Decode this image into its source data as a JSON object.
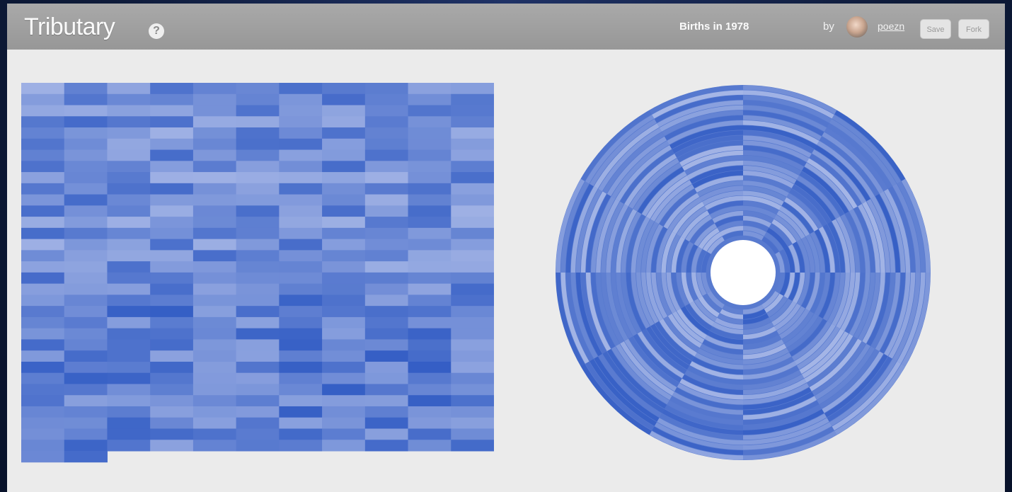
{
  "app": {
    "brand": "Tributary",
    "help_icon": "question-icon",
    "help_glyph": "?",
    "document_title": "Births in 1978",
    "by_label": "by",
    "username": "poezn",
    "save_label": "Save",
    "fork_label": "Fork"
  },
  "colors": {
    "topbar": "#9e9e9e",
    "canvas": "#ebebeb",
    "cell_light": "#c3cdef",
    "cell_dark": "#2f5ac3"
  },
  "chart_data": {
    "type": "heatmap",
    "title": "Births in 1978",
    "columns_per_row": 11,
    "rows": 34,
    "total_cells": 365,
    "radial_segments": 12,
    "legend": "none"
  }
}
